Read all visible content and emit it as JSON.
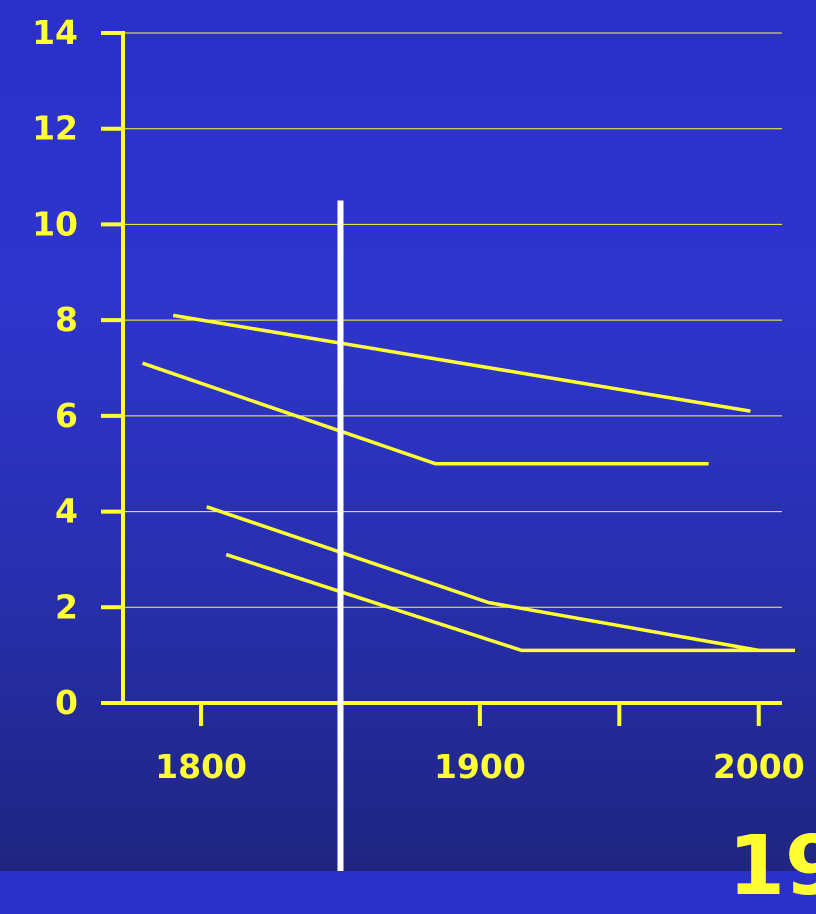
{
  "colors": {
    "background_top": "#2a30c8",
    "background_bottom": "#1f2580",
    "axis": "#ffff33",
    "series": "#ffff33",
    "marker_line": "#ffffff"
  },
  "corner_text": "19",
  "chart_data": {
    "type": "line",
    "title": "",
    "xlabel": "",
    "ylabel": "",
    "xlim": [
      1772,
      2013
    ],
    "ylim": [
      0,
      14
    ],
    "x_ticks": [
      1800,
      1850,
      1900,
      1950,
      2000
    ],
    "x_tick_labels": [
      "1800",
      "",
      "1900",
      "",
      "2000"
    ],
    "y_ticks": [
      0,
      2,
      4,
      6,
      8,
      10,
      12,
      14
    ],
    "y_tick_labels": [
      "0",
      "2",
      "4",
      "6",
      "8",
      "10",
      "12",
      "14"
    ],
    "grid": true,
    "reference_line": {
      "x": 1850,
      "y_range": [
        -3.6,
        10.5
      ]
    },
    "series": [
      {
        "x": [
          1790,
          1997
        ],
        "y": [
          8.1,
          6.1
        ]
      },
      {
        "x": [
          1779,
          1884,
          1982
        ],
        "y": [
          7.1,
          5.0,
          5.0
        ]
      },
      {
        "x": [
          1802,
          1903,
          2000
        ],
        "y": [
          4.1,
          2.1,
          1.1
        ]
      },
      {
        "x": [
          1809,
          1915,
          2013
        ],
        "y": [
          3.1,
          1.1,
          1.1
        ]
      }
    ]
  }
}
